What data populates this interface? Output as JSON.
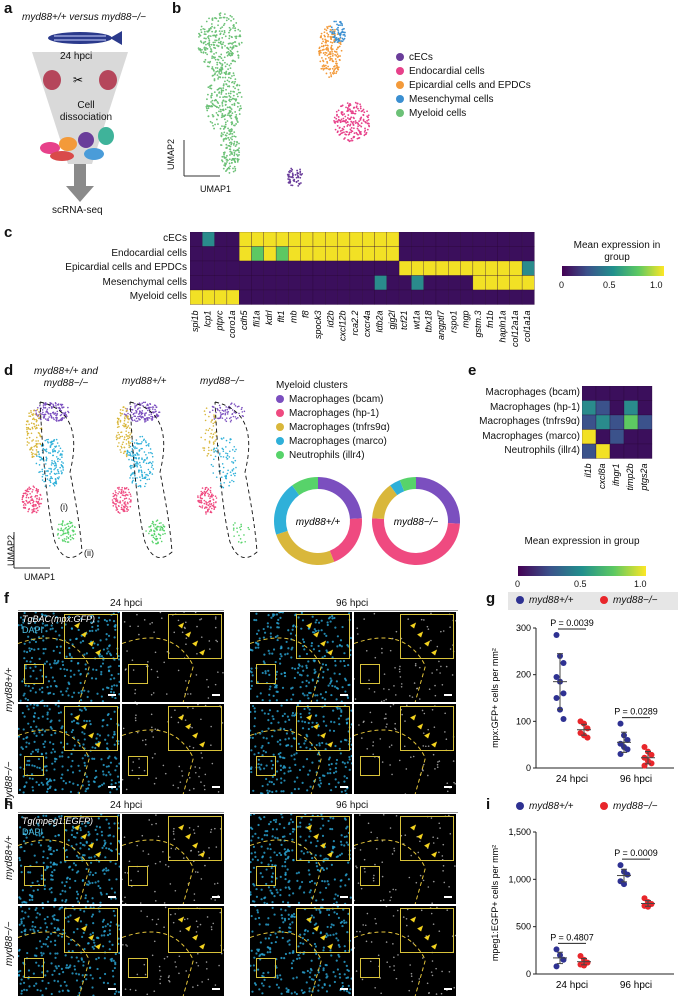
{
  "panel_letters": [
    "a",
    "b",
    "c",
    "d",
    "e",
    "f",
    "g",
    "h",
    "i"
  ],
  "panel_a": {
    "title": "myd88+/+ versus myd88−/−",
    "timepoint": "24 hpci",
    "step": "Cell dissociation",
    "output": "scRNA-seq"
  },
  "panel_b": {
    "xlabel": "UMAP1",
    "ylabel": "UMAP2",
    "legend": [
      {
        "label": "cECs",
        "color": "#6a3d9a"
      },
      {
        "label": "Endocardial cells",
        "color": "#e7418a"
      },
      {
        "label": "Epicardial cells and EPDCs",
        "color": "#f39a3a"
      },
      {
        "label": "Mesenchymal cells",
        "color": "#3b8fd1"
      },
      {
        "label": "Myeloid cells",
        "color": "#6cc177"
      }
    ]
  },
  "panel_c": {
    "rows": [
      "cECs",
      "Endocardial cells",
      "Epicardial cells and EPDCs",
      "Mesenchymal cells",
      "Myeloid cells"
    ],
    "genes": [
      "spi1b",
      "lcp1",
      "ptprc",
      "coro1a",
      "cdh5",
      "fli1a",
      "kdrl",
      "flt1",
      "mb",
      "f8",
      "spock3",
      "id2b",
      "cxcl12b",
      "rca2.2",
      "cxcr4a",
      "ldb2a",
      "gjg2l",
      "tcf21",
      "wt1a",
      "tbx18",
      "angptl7",
      "rspo1",
      "mgp",
      "gstm.3",
      "fn1b",
      "hapln1a",
      "col12a1a",
      "col1a1a"
    ],
    "colorbar_title": "Mean expression in group",
    "colorbar_ticks": [
      "0",
      "0.5",
      "1.0"
    ]
  },
  "panel_d": {
    "umap_titles": [
      "myd88+/+ and myd88−/−",
      "myd88+/+",
      "myd88−/−"
    ],
    "xlabel": "UMAP1",
    "ylabel": "UMAP2",
    "annotations": [
      "(i)",
      "(ii)"
    ],
    "legend_title": "Myeloid clusters",
    "legend": [
      {
        "label": "Macrophages (bcam)",
        "color": "#7b4fbf"
      },
      {
        "label": "Macrophages (hp-1)",
        "color": "#ef4a80"
      },
      {
        "label": "Macrophages (tnfrs9α)",
        "color": "#d9b73b"
      },
      {
        "label": "Macrophages (marco)",
        "color": "#2fb0d9"
      },
      {
        "label": "Neutrophils (illr4)",
        "color": "#57d36a"
      }
    ],
    "donut_labels": [
      "myd88+/+",
      "myd88−/−"
    ]
  },
  "panel_e": {
    "rows": [
      "Macrophages (bcam)",
      "Macrophages (hp-1)",
      "Macrophages (tnfrs9α)",
      "Macrophages (marco)",
      "Neutrophils (illr4)"
    ],
    "genes": [
      "il1b",
      "cxcl8a",
      "ifngr1",
      "timp2b",
      "ptgs2a"
    ],
    "colorbar_title": "Mean expression in group",
    "colorbar_ticks": [
      "0",
      "0.5",
      "1.0"
    ]
  },
  "panel_f": {
    "timepoints": [
      "24 hpci",
      "96 hpci"
    ],
    "reporter": "TgBAC(mpx:GFP)",
    "stain": "DAPI",
    "genotypes": [
      "myd88+/+",
      "myd88−/−"
    ]
  },
  "panel_h": {
    "timepoints": [
      "24 hpci",
      "96 hpci"
    ],
    "reporter": "Tg(mpeg1:EGFP)",
    "stain": "DAPI",
    "genotypes": [
      "myd88+/+",
      "myd88−/−"
    ]
  },
  "panel_g": {
    "legend": [
      "myd88+/+",
      "myd88−/−"
    ],
    "ylabel": "mpx:GFP+ cells per mm²",
    "yticks": [
      "0",
      "100",
      "200",
      "300"
    ],
    "pvalues": [
      "P = 0.0039",
      "P = 0.0289"
    ]
  },
  "panel_i": {
    "legend": [
      "myd88+/+",
      "myd88−/−"
    ],
    "ylabel": "mpeg1:EGFP+ cells per mm²",
    "yticks": [
      "0",
      "500",
      "1,000",
      "1,500"
    ],
    "pvalues": [
      "P = 0.4807",
      "P = 0.0009"
    ]
  },
  "chart_data": [
    {
      "type": "scatter",
      "panel": "g",
      "categories": [
        "24 hpci",
        "96 hpci"
      ],
      "ylabel": "mpx:GFP+ cells per mm²",
      "ylim": [
        0,
        300
      ],
      "series": [
        {
          "name": "myd88+/+",
          "color": "#2e3192",
          "values": [
            [
              285,
              240,
              225,
              195,
              185,
              160,
              150,
              125,
              105
            ],
            [
              95,
              70,
              60,
              52,
              45,
              40,
              30
            ]
          ]
        },
        {
          "name": "myd88−/−",
          "color": "#e8262b",
          "values": [
            [
              100,
              95,
              85,
              75,
              70,
              65
            ],
            [
              45,
              35,
              28,
              22,
              15,
              10,
              5
            ]
          ]
        }
      ],
      "means": {
        "myd88+/+": [
          185,
          55
        ],
        "myd88−/−": [
          82,
          22
        ]
      }
    },
    {
      "type": "scatter",
      "panel": "i",
      "categories": [
        "24 hpci",
        "96 hpci"
      ],
      "ylabel": "mpeg1:EGFP+ cells per mm²",
      "ylim": [
        0,
        1500
      ],
      "series": [
        {
          "name": "myd88+/+",
          "color": "#2e3192",
          "values": [
            [
              260,
              200,
              150,
              80
            ],
            [
              1150,
              1080,
              1050,
              980,
              950
            ]
          ]
        },
        {
          "name": "myd88−/−",
          "color": "#e8262b",
          "values": [
            [
              190,
              150,
              120,
              100,
              90
            ],
            [
              800,
              760,
              740,
              720,
              710
            ]
          ]
        }
      ],
      "means": {
        "myd88+/+": [
          170,
          1040
        ],
        "myd88−/−": [
          130,
          745
        ]
      }
    }
  ]
}
